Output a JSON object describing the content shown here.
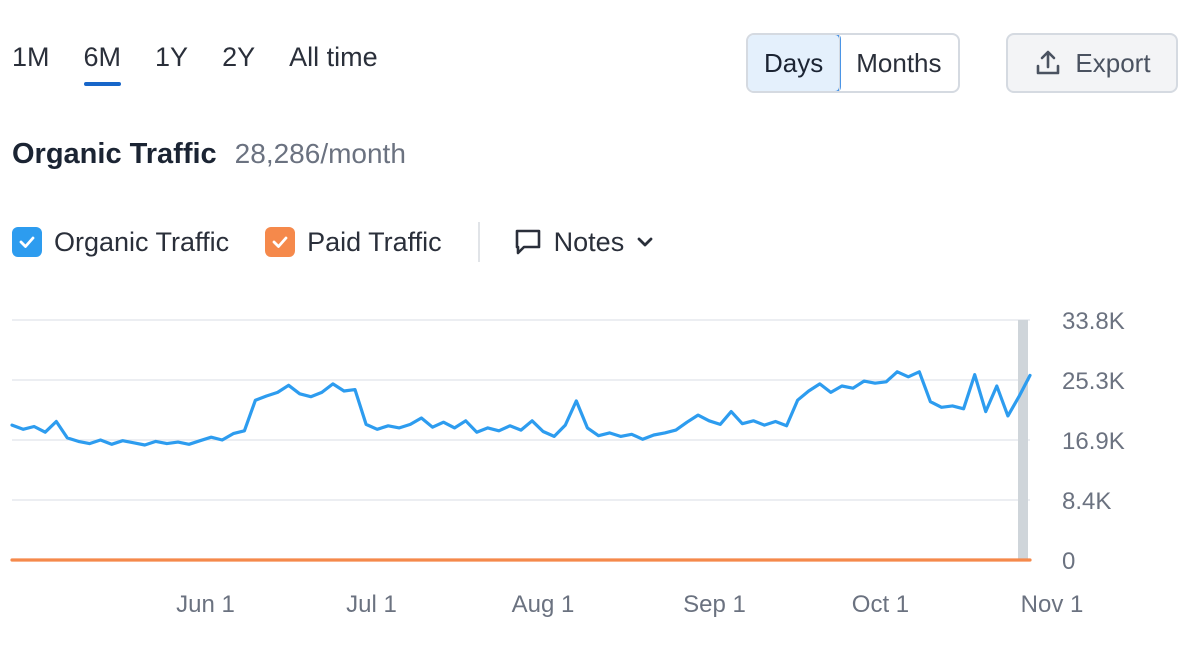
{
  "period_tabs": [
    {
      "label": "1M",
      "active": false
    },
    {
      "label": "6M",
      "active": true
    },
    {
      "label": "1Y",
      "active": false
    },
    {
      "label": "2Y",
      "active": false
    },
    {
      "label": "All time",
      "active": false
    }
  ],
  "granularity": {
    "days_label": "Days",
    "months_label": "Months",
    "selected": "Days"
  },
  "export": {
    "label": "Export",
    "icon": "upload-icon"
  },
  "header": {
    "title": "Organic Traffic",
    "value": "28,286/month"
  },
  "legend": {
    "organic": {
      "label": "Organic Traffic",
      "checked": true,
      "color": "#2d9cef"
    },
    "paid": {
      "label": "Paid Traffic",
      "checked": true,
      "color": "#f5894b"
    },
    "notes_label": "Notes"
  },
  "chart_data": {
    "type": "line",
    "x_range": [
      "2024-05-01",
      "2024-11-01"
    ],
    "x_ticks": [
      "Jun 1",
      "Jul 1",
      "Aug 1",
      "Sep 1",
      "Oct 1",
      "Nov 1"
    ],
    "y_ticks": [
      "0",
      "8.4K",
      "16.9K",
      "25.3K",
      "33.8K"
    ],
    "ylim": [
      0,
      33800
    ],
    "grid": true,
    "series": [
      {
        "name": "Organic Traffic",
        "color": "#2d9cef",
        "points": [
          [
            "2024-05-01",
            19000
          ],
          [
            "2024-05-03",
            18400
          ],
          [
            "2024-05-05",
            18800
          ],
          [
            "2024-05-07",
            18000
          ],
          [
            "2024-05-09",
            19500
          ],
          [
            "2024-05-11",
            17200
          ],
          [
            "2024-05-13",
            16700
          ],
          [
            "2024-05-15",
            16400
          ],
          [
            "2024-05-17",
            16900
          ],
          [
            "2024-05-19",
            16300
          ],
          [
            "2024-05-21",
            16800
          ],
          [
            "2024-05-23",
            16500
          ],
          [
            "2024-05-25",
            16200
          ],
          [
            "2024-05-27",
            16700
          ],
          [
            "2024-05-29",
            16400
          ],
          [
            "2024-05-31",
            16600
          ],
          [
            "2024-06-02",
            16300
          ],
          [
            "2024-06-04",
            16800
          ],
          [
            "2024-06-06",
            17300
          ],
          [
            "2024-06-08",
            16900
          ],
          [
            "2024-06-10",
            17800
          ],
          [
            "2024-06-12",
            18200
          ],
          [
            "2024-06-14",
            22500
          ],
          [
            "2024-06-16",
            23100
          ],
          [
            "2024-06-18",
            23600
          ],
          [
            "2024-06-20",
            24600
          ],
          [
            "2024-06-22",
            23400
          ],
          [
            "2024-06-24",
            23000
          ],
          [
            "2024-06-26",
            23600
          ],
          [
            "2024-06-28",
            24800
          ],
          [
            "2024-06-30",
            23800
          ],
          [
            "2024-07-02",
            24000
          ],
          [
            "2024-07-04",
            19100
          ],
          [
            "2024-07-06",
            18400
          ],
          [
            "2024-07-08",
            18900
          ],
          [
            "2024-07-10",
            18600
          ],
          [
            "2024-07-12",
            19100
          ],
          [
            "2024-07-14",
            20000
          ],
          [
            "2024-07-16",
            18700
          ],
          [
            "2024-07-18",
            19400
          ],
          [
            "2024-07-20",
            18600
          ],
          [
            "2024-07-22",
            19600
          ],
          [
            "2024-07-24",
            18000
          ],
          [
            "2024-07-26",
            18600
          ],
          [
            "2024-07-28",
            18200
          ],
          [
            "2024-07-30",
            18900
          ],
          [
            "2024-08-01",
            18300
          ],
          [
            "2024-08-03",
            19600
          ],
          [
            "2024-08-05",
            18100
          ],
          [
            "2024-08-07",
            17400
          ],
          [
            "2024-08-09",
            19000
          ],
          [
            "2024-08-11",
            22400
          ],
          [
            "2024-08-13",
            18600
          ],
          [
            "2024-08-15",
            17500
          ],
          [
            "2024-08-17",
            17900
          ],
          [
            "2024-08-19",
            17400
          ],
          [
            "2024-08-21",
            17700
          ],
          [
            "2024-08-23",
            17000
          ],
          [
            "2024-08-25",
            17600
          ],
          [
            "2024-08-27",
            17900
          ],
          [
            "2024-08-29",
            18300
          ],
          [
            "2024-08-31",
            19400
          ],
          [
            "2024-09-02",
            20400
          ],
          [
            "2024-09-04",
            19600
          ],
          [
            "2024-09-06",
            19100
          ],
          [
            "2024-09-08",
            20900
          ],
          [
            "2024-09-10",
            19200
          ],
          [
            "2024-09-12",
            19600
          ],
          [
            "2024-09-14",
            19000
          ],
          [
            "2024-09-16",
            19500
          ],
          [
            "2024-09-18",
            18900
          ],
          [
            "2024-09-20",
            22500
          ],
          [
            "2024-09-22",
            23800
          ],
          [
            "2024-09-24",
            24800
          ],
          [
            "2024-09-26",
            23600
          ],
          [
            "2024-09-28",
            24500
          ],
          [
            "2024-09-30",
            24200
          ],
          [
            "2024-10-02",
            25200
          ],
          [
            "2024-10-04",
            24900
          ],
          [
            "2024-10-06",
            25100
          ],
          [
            "2024-10-08",
            26500
          ],
          [
            "2024-10-10",
            25800
          ],
          [
            "2024-10-12",
            26500
          ],
          [
            "2024-10-14",
            22300
          ],
          [
            "2024-10-16",
            21500
          ],
          [
            "2024-10-18",
            21700
          ],
          [
            "2024-10-20",
            21300
          ],
          [
            "2024-10-22",
            26100
          ],
          [
            "2024-10-24",
            20900
          ],
          [
            "2024-10-26",
            24500
          ],
          [
            "2024-10-28",
            20300
          ],
          [
            "2024-10-30",
            23000
          ],
          [
            "2024-11-01",
            26000
          ]
        ]
      },
      {
        "name": "Paid Traffic",
        "color": "#f5894b",
        "points": [
          [
            "2024-05-01",
            0
          ],
          [
            "2024-11-01",
            0
          ]
        ]
      }
    ]
  }
}
